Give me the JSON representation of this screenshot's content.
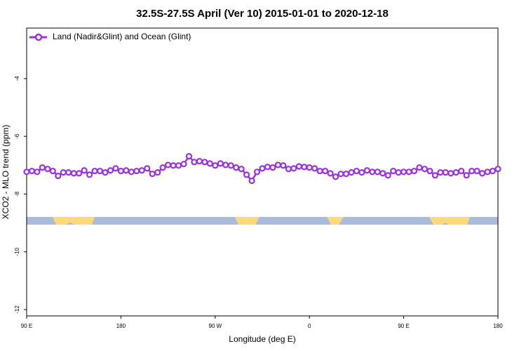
{
  "chart_data": {
    "type": "line",
    "title": "32.5S-27.5S April (Ver 10)   2015-01-01 to 2020-12-18",
    "xlabel": "Longitude (deg E)",
    "ylabel": "XCO2 - MLO trend (ppm)",
    "x": [
      90,
      95,
      100,
      105,
      110,
      115,
      120,
      125,
      130,
      135,
      140,
      145,
      150,
      155,
      160,
      165,
      170,
      175,
      180,
      185,
      190,
      195,
      200,
      205,
      210,
      215,
      220,
      225,
      230,
      235,
      240,
      245,
      250,
      255,
      260,
      265,
      270,
      275,
      280,
      285,
      290,
      295,
      300,
      305,
      310,
      315,
      320,
      325,
      330,
      335,
      340,
      345,
      350,
      355,
      360,
      365,
      370,
      375,
      380,
      385,
      390,
      395,
      400,
      405,
      410,
      415,
      420,
      425,
      430,
      435,
      440,
      445,
      450,
      455,
      460,
      465,
      470,
      475,
      480,
      485,
      490,
      495,
      500,
      505,
      510,
      515,
      520,
      525,
      530,
      535,
      540
    ],
    "series": [
      {
        "name": "Land (Nadir&Glint) and Ocean (Glint)",
        "color": "#9b30e0",
        "values": [
          -7.23,
          -7.2,
          -7.23,
          -7.08,
          -7.13,
          -7.2,
          -7.37,
          -7.25,
          -7.25,
          -7.28,
          -7.28,
          -7.18,
          -7.33,
          -7.2,
          -7.2,
          -7.25,
          -7.18,
          -7.11,
          -7.2,
          -7.18,
          -7.23,
          -7.2,
          -7.18,
          -7.11,
          -7.3,
          -7.25,
          -7.08,
          -6.99,
          -7.01,
          -7.01,
          -6.96,
          -6.69,
          -6.89,
          -6.86,
          -6.89,
          -6.94,
          -7.01,
          -6.94,
          -6.99,
          -7.01,
          -7.08,
          -7.13,
          -7.33,
          -7.54,
          -7.23,
          -7.11,
          -7.06,
          -7.08,
          -6.99,
          -7.01,
          -7.13,
          -7.11,
          -7.04,
          -7.06,
          -7.08,
          -7.11,
          -7.2,
          -7.2,
          -7.28,
          -7.4,
          -7.3,
          -7.3,
          -7.25,
          -7.2,
          -7.25,
          -7.18,
          -7.23,
          -7.23,
          -7.28,
          -7.35,
          -7.2,
          -7.25,
          -7.23,
          -7.23,
          -7.2,
          -7.08,
          -7.13,
          -7.2,
          -7.35,
          -7.25,
          -7.25,
          -7.28,
          -7.25,
          -7.2,
          -7.35,
          -7.2,
          -7.2,
          -7.28,
          -7.23,
          -7.2,
          -7.13
        ]
      }
    ],
    "xlim": [
      90,
      540
    ],
    "xticks": [
      {
        "value": 90,
        "label": "90 E"
      },
      180,
      {
        "value": 270,
        "label": "90 W"
      },
      {
        "value": 360,
        "label": "0"
      },
      {
        "value": 450,
        "label": "90 E"
      },
      {
        "value": 540,
        "label": "180"
      }
    ],
    "ylim": [
      -12.22,
      -2.25
    ],
    "yticks": [
      -12,
      -10,
      -8,
      -6,
      -4
    ],
    "legend": "top-left"
  }
}
